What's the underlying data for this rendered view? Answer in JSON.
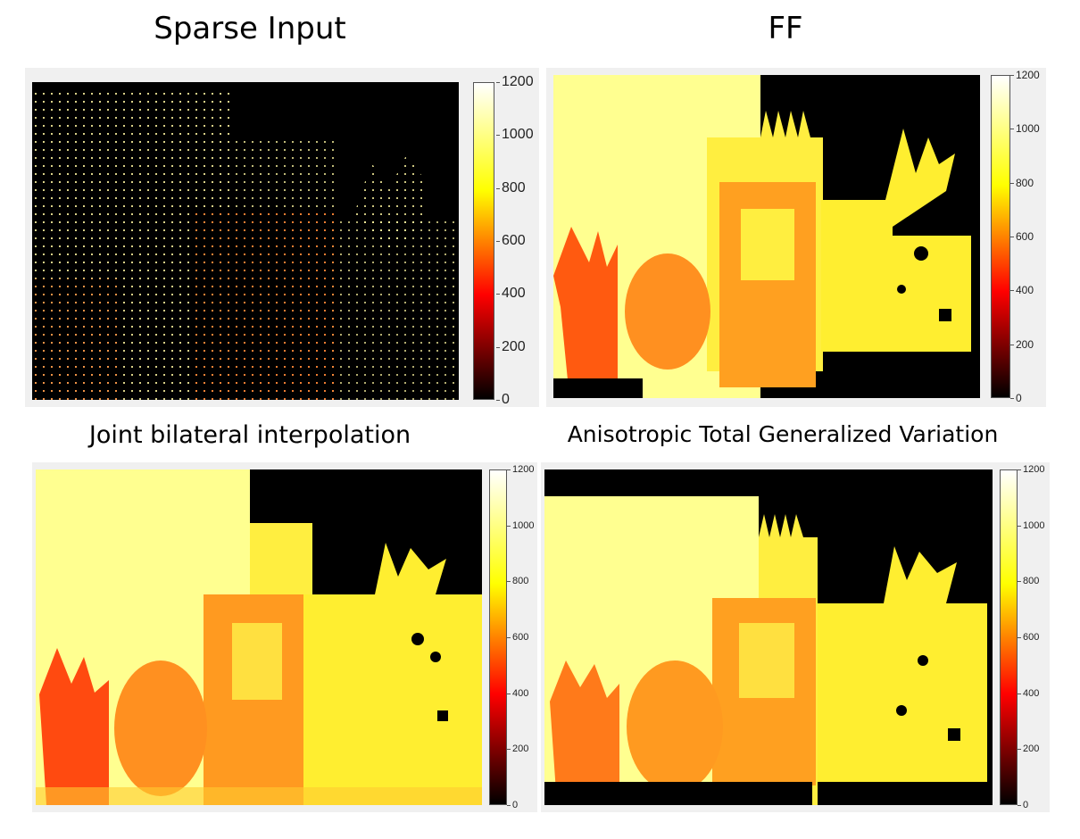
{
  "panels": [
    {
      "title": "Sparse Input"
    },
    {
      "title": "FF"
    },
    {
      "title": "Joint bilateral interpolation"
    },
    {
      "title": "Anisotropic Total Generalized Variation"
    }
  ],
  "colorbar": {
    "colormap": "hot",
    "min": 0,
    "max": 1200,
    "ticks": [
      "0",
      "200",
      "400",
      "600",
      "800",
      "1000",
      "1200"
    ]
  }
}
